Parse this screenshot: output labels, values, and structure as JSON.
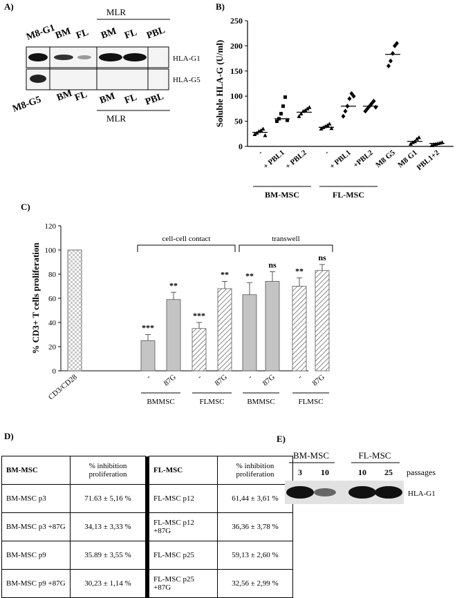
{
  "panelA": {
    "letter": "A)",
    "top_labels": [
      "M8-G1",
      "BM",
      "FL",
      "BM",
      "FL",
      "PBL"
    ],
    "mlr": "MLR",
    "bottom_labels": [
      "M8-G5",
      "BM",
      "FL",
      "BM",
      "FL",
      "PBL"
    ],
    "band_labels": [
      "HLA-G1",
      "HLA-G5"
    ]
  },
  "panelB": {
    "letter": "B)",
    "chart_data": {
      "type": "scatter",
      "ylabel": "Soluble HLA-G (U/ml)",
      "ylim": [
        0,
        250
      ],
      "yticks": [
        0,
        50,
        100,
        150,
        200,
        250
      ],
      "categories": [
        "-",
        "+ PBL1",
        "+ PBL2",
        "-",
        "+ PBL1",
        "+PBL2",
        "M8 G5",
        "M8 G1",
        "PBL1+2"
      ],
      "groups": [
        {
          "label": "BM-MSC"
        },
        {
          "label": "FL-MSC"
        }
      ],
      "points": [
        [
          24,
          27,
          30,
          32,
          35,
          22
        ],
        [
          50,
          55,
          65,
          80,
          98,
          52
        ],
        [
          60,
          65,
          70,
          72,
          75,
          78
        ],
        [
          35,
          38,
          40,
          42,
          45,
          36
        ],
        [
          60,
          70,
          80,
          95,
          105,
          100
        ],
        [
          70,
          75,
          80,
          85,
          90,
          78
        ],
        [
          160,
          170,
          185,
          200,
          205
        ],
        [
          5,
          8,
          10,
          15,
          18
        ],
        [
          2,
          4,
          5,
          6,
          7,
          8
        ]
      ],
      "medians": [
        28,
        55,
        68,
        38,
        80,
        80,
        183,
        10,
        6
      ],
      "markers": [
        "triangle",
        "square",
        "triangle",
        "triangle",
        "diamond",
        "diamond",
        "diamond",
        "triangle",
        "triangle"
      ]
    }
  },
  "panelC": {
    "letter": "C)",
    "chart_data": {
      "type": "bar",
      "ylabel": "% CD3+ T cells proliferation",
      "ylim": [
        0,
        120
      ],
      "yticks": [
        0,
        20,
        40,
        60,
        80,
        100,
        120
      ],
      "bars": [
        {
          "label": "CD3/CD28",
          "value": 100,
          "error": 0,
          "sig": "",
          "pattern": "check"
        },
        {
          "label": "-",
          "value": 25,
          "error": 5,
          "sig": "***",
          "pattern": "solid"
        },
        {
          "label": "87G",
          "value": 59,
          "error": 6,
          "sig": "**",
          "pattern": "solid"
        },
        {
          "label": "-",
          "value": 35,
          "error": 5,
          "sig": "***",
          "pattern": "hatch"
        },
        {
          "label": "87G",
          "value": 68,
          "error": 6,
          "sig": "**",
          "pattern": "hatch"
        },
        {
          "label": "-",
          "value": 63,
          "error": 10,
          "sig": "**",
          "pattern": "solid"
        },
        {
          "label": "87G",
          "value": 74,
          "error": 8,
          "sig": "ns",
          "pattern": "solid"
        },
        {
          "label": "-",
          "value": 70,
          "error": 7,
          "sig": "**",
          "pattern": "hatch"
        },
        {
          "label": "87G",
          "value": 83,
          "error": 5,
          "sig": "ns",
          "pattern": "hatch"
        }
      ],
      "group_labels": [
        "BMMSC",
        "FLMSC",
        "BMMSC",
        "FLMSC"
      ],
      "brackets": [
        "cell-cell contact",
        "transwell"
      ]
    }
  },
  "panelD": {
    "letter": "D)",
    "headers": [
      "BM-MSC",
      "% inhibition proliferation",
      "FL-MSC",
      "% inhibition proliferation"
    ],
    "rows": [
      [
        "BM-MSC p3",
        "71.63 ± 5,16 %",
        "FL-MSC p12",
        "61,44 ± 3,61 %"
      ],
      [
        "BM-MSC p3 +87G",
        "34,13 ± 3,33 %",
        "FL-MSC p12 +87G",
        "36,36 ± 3,78 %"
      ],
      [
        "BM-MSC p9",
        "35.89 ± 3,55 %",
        "FL-MSC p25",
        "59,13 ± 2,60 %"
      ],
      [
        "BM-MSC p9 +87G",
        "30,23 ± 1,14 %",
        "FL-MSC p25 +87G",
        "32,56 ± 2,99 %"
      ]
    ]
  },
  "panelE": {
    "letter": "E)",
    "groups": [
      "BM-MSC",
      "FL-MSC"
    ],
    "lanes": [
      "3",
      "10",
      "10",
      "25"
    ],
    "passages": "passages",
    "band_label": "HLA-G1"
  }
}
